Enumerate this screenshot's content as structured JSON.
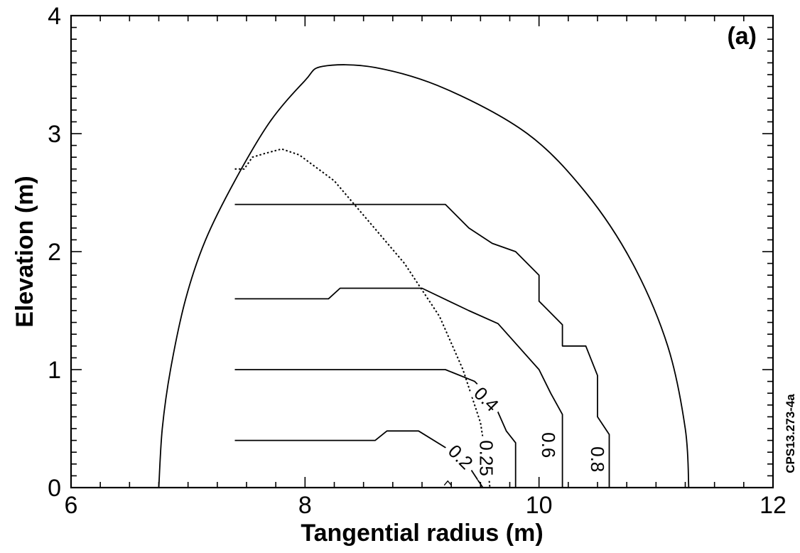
{
  "chart_data": {
    "type": "contour",
    "panel_label": "(a)",
    "xlabel": "Tangential radius (m)",
    "ylabel": "Elevation (m)",
    "xlim": [
      6,
      12
    ],
    "ylim": [
      0,
      4
    ],
    "xticks": [
      "6",
      "8",
      "10",
      "12"
    ],
    "yticks": [
      "0",
      "1",
      "2",
      "3",
      "4"
    ],
    "side_id": "CPS13.273-4a",
    "outer_boundary": {
      "style": "solid",
      "points": [
        [
          6.75,
          0
        ],
        [
          6.78,
          0.5
        ],
        [
          6.85,
          1.0
        ],
        [
          6.98,
          1.6
        ],
        [
          7.15,
          2.1
        ],
        [
          7.4,
          2.6
        ],
        [
          7.7,
          3.1
        ],
        [
          8.0,
          3.45
        ],
        [
          8.15,
          3.57
        ],
        [
          8.6,
          3.56
        ],
        [
          9.2,
          3.38
        ],
        [
          9.9,
          3.0
        ],
        [
          10.4,
          2.5
        ],
        [
          10.8,
          1.9
        ],
        [
          11.1,
          1.2
        ],
        [
          11.25,
          0.5
        ],
        [
          11.28,
          0
        ]
      ]
    },
    "contours": [
      {
        "level": "0.2",
        "style": "solid",
        "points": [
          [
            7.4,
            0.4
          ],
          [
            8.6,
            0.4
          ],
          [
            8.7,
            0.48
          ],
          [
            8.97,
            0.48
          ],
          [
            9.2,
            0.34
          ],
          [
            9.42,
            0.15
          ],
          [
            9.52,
            0
          ]
        ]
      },
      {
        "level": "0.25",
        "style": "dotted",
        "points": [
          [
            7.4,
            2.7
          ],
          [
            7.48,
            2.7
          ],
          [
            7.55,
            2.8
          ],
          [
            7.65,
            2.83
          ],
          [
            7.8,
            2.87
          ],
          [
            7.95,
            2.82
          ],
          [
            8.25,
            2.6
          ],
          [
            8.55,
            2.25
          ],
          [
            8.85,
            1.9
          ],
          [
            9.15,
            1.45
          ],
          [
            9.35,
            1.0
          ],
          [
            9.5,
            0.55
          ],
          [
            9.57,
            0.1
          ],
          [
            9.58,
            0
          ]
        ]
      },
      {
        "level": "0.4",
        "style": "solid",
        "points": [
          [
            7.4,
            1.0
          ],
          [
            9.2,
            1.0
          ],
          [
            9.45,
            0.9
          ],
          [
            9.6,
            0.75
          ],
          [
            9.72,
            0.48
          ],
          [
            9.8,
            0.38
          ],
          [
            9.8,
            0
          ]
        ]
      },
      {
        "level": "0.6",
        "style": "solid",
        "points": [
          [
            7.4,
            1.6
          ],
          [
            8.2,
            1.6
          ],
          [
            8.3,
            1.69
          ],
          [
            9.0,
            1.69
          ],
          [
            9.4,
            1.5
          ],
          [
            9.65,
            1.39
          ],
          [
            10.0,
            1.0
          ],
          [
            10.1,
            0.8
          ],
          [
            10.2,
            0.62
          ],
          [
            10.2,
            0
          ]
        ]
      },
      {
        "level": "0.8",
        "style": "solid",
        "points": [
          [
            7.4,
            2.4
          ],
          [
            9.2,
            2.4
          ],
          [
            9.4,
            2.2
          ],
          [
            9.6,
            2.07
          ],
          [
            9.8,
            2.0
          ],
          [
            10.0,
            1.8
          ],
          [
            10.0,
            1.58
          ],
          [
            10.2,
            1.38
          ],
          [
            10.2,
            1.2
          ],
          [
            10.4,
            1.2
          ],
          [
            10.5,
            0.95
          ],
          [
            10.5,
            0.6
          ],
          [
            10.6,
            0.45
          ],
          [
            10.6,
            0
          ]
        ]
      }
    ],
    "contour_labels": [
      {
        "text": "0.4",
        "x": 9.55,
        "y": 0.75,
        "rotate": 45
      },
      {
        "text": "0.25",
        "x": 9.55,
        "y": 0.25,
        "rotate": 90
      },
      {
        "text": "0.2",
        "x": 9.33,
        "y": 0.26,
        "rotate": 45
      },
      {
        "text": "0.6",
        "x": 10.08,
        "y": 0.36,
        "rotate": 90
      },
      {
        "text": "0.8",
        "x": 10.5,
        "y": 0.24,
        "rotate": 90
      }
    ],
    "extra_marks": [
      {
        "shape": "chevron",
        "x": 9.22,
        "y": 0.02
      }
    ]
  }
}
